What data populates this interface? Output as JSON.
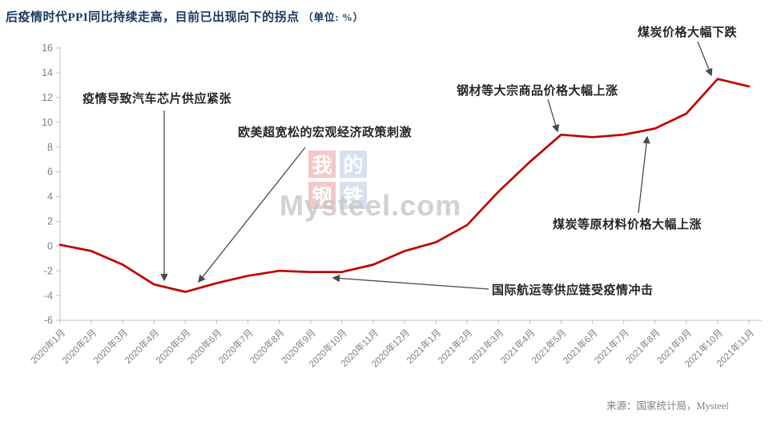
{
  "page": {
    "title_main": "后疫情时代PPI同比持续走高，目前已出现向下的拐点",
    "title_unit": "（单位: %）",
    "source": "来源：国家统计局，Mysteel"
  },
  "watermark": {
    "chars": [
      "我",
      "的",
      "钢",
      "铁"
    ],
    "domain": "Mysteel.com"
  },
  "colors": {
    "title": "#17375e",
    "line": "#c00000",
    "axis": "#bfbfbf",
    "tick_label": "#7f7f7f",
    "annotation_text": "#262626",
    "arrow": "#4a4a4a",
    "watermark_pink": "#f4c9c9",
    "watermark_blue": "#d7e1f1",
    "watermark_domain": "#c6c6c6",
    "source_text": "#7f7f7f"
  },
  "chart_data": {
    "type": "line",
    "title": "后疫情时代PPI同比持续走高，目前已出现向下的拐点（单位: %）",
    "categories": [
      "2020年1月",
      "2020年2月",
      "2020年3月",
      "2020年4月",
      "2020年5月",
      "2020年6月",
      "2020年7月",
      "2020年8月",
      "2020年9月",
      "2020年10月",
      "2020年11月",
      "2020年12月",
      "2021年1月",
      "2021年2月",
      "2021年3月",
      "2021年4月",
      "2021年5月",
      "2021年6月",
      "2021年7月",
      "2021年8月",
      "2021年9月",
      "2021年10月",
      "2021年11月"
    ],
    "series": [
      {
        "name": "PPI同比(%)",
        "values": [
          0.1,
          -0.4,
          -1.5,
          -3.1,
          -3.7,
          -3.0,
          -2.4,
          -2.0,
          -2.1,
          -2.1,
          -1.5,
          -0.4,
          0.3,
          1.7,
          4.4,
          6.8,
          9.0,
          8.8,
          9.0,
          9.5,
          10.7,
          13.5,
          12.9
        ]
      }
    ],
    "xlabel": "",
    "ylabel": "%",
    "ylim": [
      -6,
      16
    ],
    "yticks": [
      16,
      14,
      12,
      10,
      8,
      6,
      4,
      2,
      0,
      -2,
      -4,
      -6
    ],
    "grid": false,
    "legend": "none",
    "line_color": "#c00000",
    "annotations": [
      {
        "text": "疫情导致汽车芯片供应紧张"
      },
      {
        "text": "欧美超宽松的宏观经济政策刺激"
      },
      {
        "text": "钢材等大宗商品价格大幅上涨"
      },
      {
        "text": "煤炭价格大幅下跌"
      },
      {
        "text": "煤炭等原材料价格大幅上涨"
      },
      {
        "text": "国际航运等供应链受疫情冲击"
      }
    ]
  }
}
